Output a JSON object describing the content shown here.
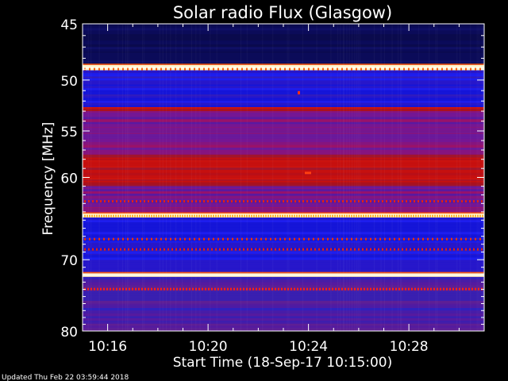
{
  "chart_data": {
    "type": "heatmap",
    "title": "Solar radio Flux (Glasgow)",
    "xlabel": "Start Time (18-Sep-17 10:15:00)",
    "ylabel": "Frequency [MHz]",
    "xlim_minutes": [
      10.25,
      10.517
    ],
    "ylim": [
      45,
      80
    ],
    "y_scale": "log",
    "x_ticks": [
      "10:16",
      "10:20",
      "10:24",
      "10:28"
    ],
    "y_ticks": [
      45,
      50,
      55,
      60,
      70,
      80
    ],
    "colors": {
      "background": "#000000",
      "low": "#0a0a55",
      "mid": "#1d1ff0",
      "high": "#d4100a",
      "peak": "#fff4c8"
    },
    "bands": [
      {
        "from_mhz": 45.0,
        "to_mhz": 48.6,
        "level": "low"
      },
      {
        "from_mhz": 48.6,
        "to_mhz": 49.1,
        "level": "peak"
      },
      {
        "from_mhz": 49.1,
        "to_mhz": 52.6,
        "level": "mid"
      },
      {
        "from_mhz": 52.6,
        "to_mhz": 53.0,
        "level": "high"
      },
      {
        "from_mhz": 53.0,
        "to_mhz": 57.5,
        "level": "mid-high"
      },
      {
        "from_mhz": 57.5,
        "to_mhz": 61.0,
        "level": "high"
      },
      {
        "from_mhz": 61.0,
        "to_mhz": 64.2,
        "level": "mid-high"
      },
      {
        "from_mhz": 64.2,
        "to_mhz": 64.7,
        "level": "peak"
      },
      {
        "from_mhz": 64.7,
        "to_mhz": 71.8,
        "level": "mid"
      },
      {
        "from_mhz": 71.8,
        "to_mhz": 72.3,
        "level": "peak"
      },
      {
        "from_mhz": 72.3,
        "to_mhz": 80.0,
        "level": "mid-low"
      }
    ]
  },
  "footer": {
    "updated": "Updated Thu Feb 22 03:59:44 2018"
  }
}
